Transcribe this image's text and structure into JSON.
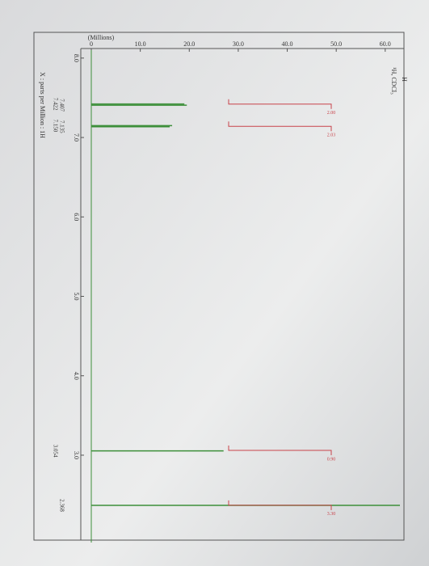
{
  "chart_data": {
    "type": "spectrum",
    "x_axis_label": "X : parts per Million : 1H",
    "y_axis_label": "(Millions)",
    "annotation_title": "H",
    "annotation_subtitle": "¹H, CDCl₃",
    "xlim": [
      8.1,
      1.9
    ],
    "xticks": [
      {
        "value": 8,
        "label": "8.0"
      },
      {
        "value": 7,
        "label": "7.0"
      },
      {
        "value": 6,
        "label": "6.0"
      },
      {
        "value": 5,
        "label": "5.0"
      },
      {
        "value": 4,
        "label": "4.0"
      },
      {
        "value": 3,
        "label": "3.0"
      }
    ],
    "ylim": [
      0,
      63
    ],
    "yticks": [
      0,
      {
        "value": 10,
        "label": "10.0"
      },
      {
        "value": 20,
        "label": "20.0"
      },
      {
        "value": 30,
        "label": "30.0"
      },
      {
        "value": 40,
        "label": "40.0"
      },
      {
        "value": 50,
        "label": "50.0"
      },
      {
        "value": 60,
        "label": "60.0"
      }
    ],
    "peaks": {
      "color": "#3d8f3a",
      "x": [
        7.422,
        7.407,
        7.15,
        7.135,
        3.054,
        2.368
      ],
      "x_labels": [
        "7.422",
        "7.407",
        "7.150",
        "7.135",
        "3.054",
        "2.368"
      ],
      "values": [
        19,
        19.5,
        16.5,
        16,
        27,
        63
      ]
    },
    "integrals": {
      "color": "#c8434a",
      "x": [
        7.42,
        7.14,
        3.06,
        2.37
      ],
      "values": [
        2,
        2.03,
        0.9,
        3.3
      ],
      "value_labels": [
        "2.00",
        "2.03",
        "0.90",
        "3.30"
      ]
    }
  }
}
